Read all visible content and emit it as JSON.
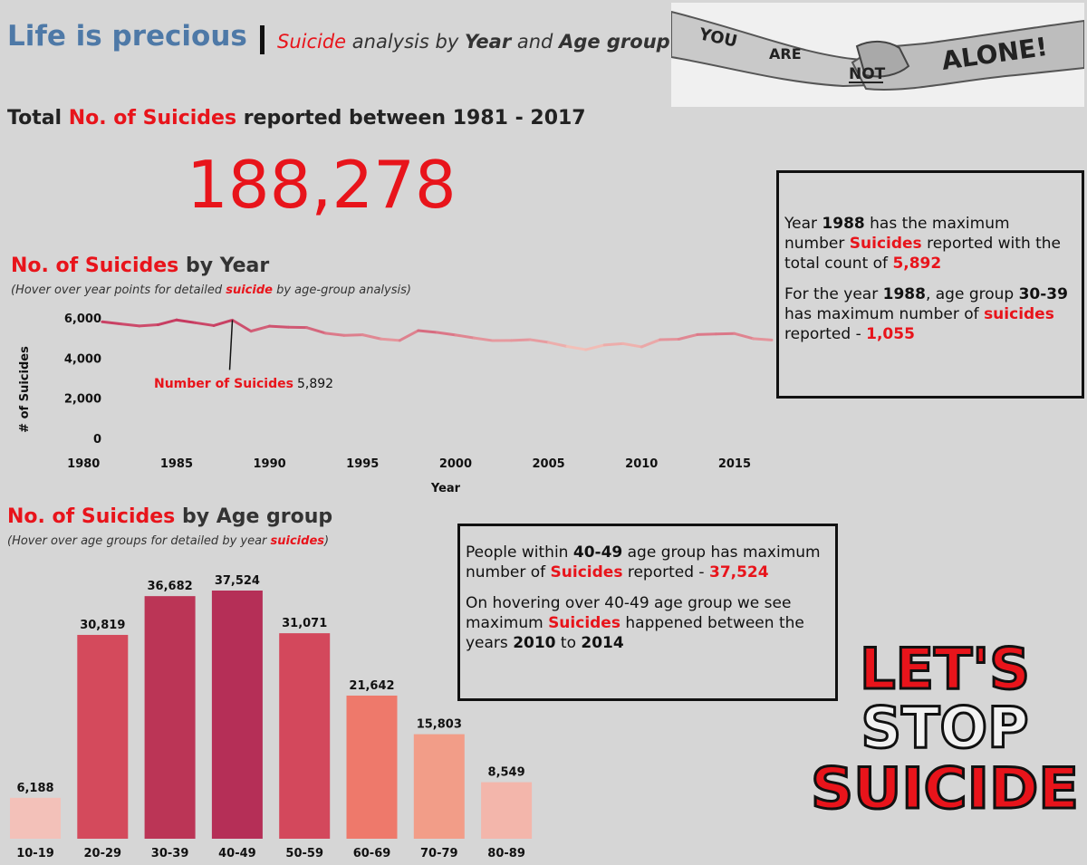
{
  "header": {
    "title": "Life is precious",
    "subtitle_parts": [
      {
        "text": "Suicide",
        "style": "red"
      },
      {
        "text": " analysis by ",
        "style": "plain"
      },
      {
        "text": "Year",
        "style": "bold"
      },
      {
        "text": " and ",
        "style": "plain"
      },
      {
        "text": "Age group",
        "style": "bold"
      }
    ]
  },
  "hero_image": {
    "icon": "handshake-photo-icon",
    "words": [
      "YOU",
      "ARE",
      "NOT",
      "ALONE!"
    ]
  },
  "total": {
    "heading_parts": [
      {
        "text": "Total ",
        "style": "plain"
      },
      {
        "text": "No. of Suicides",
        "style": "red"
      },
      {
        "text": " reported between 1981 - 2017",
        "style": "plain"
      }
    ],
    "value": "188,278"
  },
  "year_section": {
    "title_parts": [
      {
        "text": "No. of Suicides",
        "style": "red"
      },
      {
        "text": " by Year",
        "style": "plain"
      }
    ],
    "hint_parts": [
      {
        "text": "(Hover over year points for detailed ",
        "style": "plain"
      },
      {
        "text": "suicide",
        "style": "red"
      },
      {
        "text": " by age-group analysis)",
        "style": "plain"
      }
    ]
  },
  "age_section": {
    "title_parts": [
      {
        "text": "No. of Suicides",
        "style": "red"
      },
      {
        "text": " by Age group",
        "style": "plain"
      }
    ],
    "hint_parts": [
      {
        "text": "(Hover over age groups for detailed by year ",
        "style": "plain"
      },
      {
        "text": "suicides",
        "style": "red"
      },
      {
        "text": ")",
        "style": "plain"
      }
    ]
  },
  "year_note": {
    "paragraphs": [
      [
        {
          "text": "Year ",
          "style": "plain"
        },
        {
          "text": "1988",
          "style": "bold"
        },
        {
          "text": " has the maximum number ",
          "style": "plain"
        },
        {
          "text": "Suicides",
          "style": "red"
        },
        {
          "text": " reported with the total count of ",
          "style": "plain"
        },
        {
          "text": "5,892",
          "style": "red"
        }
      ],
      [
        {
          "text": "For the year ",
          "style": "plain"
        },
        {
          "text": "1988",
          "style": "bold"
        },
        {
          "text": ", age group ",
          "style": "plain"
        },
        {
          "text": "30-39",
          "style": "bold"
        },
        {
          "text": " has maximum number of ",
          "style": "plain"
        },
        {
          "text": "suicides",
          "style": "red"
        },
        {
          "text": " reported - ",
          "style": "plain"
        },
        {
          "text": "1,055",
          "style": "red"
        }
      ]
    ]
  },
  "age_note": {
    "paragraphs": [
      [
        {
          "text": "People within ",
          "style": "plain"
        },
        {
          "text": "40-49",
          "style": "bold"
        },
        {
          "text": " age group has maximum number of ",
          "style": "plain"
        },
        {
          "text": "Suicides",
          "style": "red"
        },
        {
          "text": " reported - ",
          "style": "plain"
        },
        {
          "text": "37,524",
          "style": "red"
        }
      ],
      [
        {
          "text": "On hovering over 40-49 age group we see maximum ",
          "style": "plain"
        },
        {
          "text": "Suicides",
          "style": "red"
        },
        {
          "text": " happened between the years ",
          "style": "plain"
        },
        {
          "text": "2010",
          "style": "bold"
        },
        {
          "text": " to ",
          "style": "plain"
        },
        {
          "text": "2014",
          "style": "bold"
        }
      ]
    ]
  },
  "stop_logo": {
    "icon": "lets-stop-suicide-logo-icon",
    "lines": [
      "LET'S",
      "STOP",
      "SUICIDE"
    ]
  },
  "colors": {
    "accent_red": "#e8141b",
    "title_blue": "#4e79a7",
    "background": "#d6d6d6"
  },
  "chart_data": [
    {
      "type": "line",
      "xlabel": "Year",
      "ylabel": "# of Suicides",
      "xlim": [
        1979.5,
        2017
      ],
      "ylim": [
        0,
        6000
      ],
      "x_ticks": [
        1980,
        1985,
        1990,
        1995,
        2000,
        2005,
        2010,
        2015
      ],
      "y_ticks": [
        0,
        2000,
        4000,
        6000
      ],
      "y_tick_labels": [
        "0",
        "2,000",
        "4,000",
        "6,000"
      ],
      "grid": false,
      "x": [
        1981,
        1982,
        1983,
        1984,
        1985,
        1986,
        1987,
        1988,
        1989,
        1990,
        1991,
        1992,
        1993,
        1994,
        1995,
        1996,
        1997,
        1998,
        1999,
        2000,
        2001,
        2002,
        2003,
        2004,
        2005,
        2006,
        2007,
        2008,
        2009,
        2010,
        2011,
        2012,
        2013,
        2014,
        2015,
        2016,
        2017
      ],
      "values": [
        5810,
        5700,
        5600,
        5660,
        5900,
        5760,
        5620,
        5892,
        5340,
        5590,
        5540,
        5520,
        5240,
        5130,
        5160,
        4950,
        4880,
        5370,
        5280,
        5150,
        5000,
        4870,
        4880,
        4920,
        4780,
        4580,
        4420,
        4650,
        4720,
        4560,
        4920,
        4940,
        5170,
        5200,
        5220,
        4970,
        4900
      ],
      "color_scale": "value (light pink at min to dark red at max)",
      "annotation": {
        "x": 1988,
        "label": "Number of Suicides",
        "value": "5,892"
      }
    },
    {
      "type": "bar",
      "categories": [
        "10-19",
        "20-29",
        "30-39",
        "40-49",
        "50-59",
        "60-69",
        "70-79",
        "80-89"
      ],
      "values": [
        6188,
        30819,
        36682,
        37524,
        31071,
        21642,
        15803,
        8549
      ],
      "value_labels": [
        "6,188",
        "30,819",
        "36,682",
        "37,524",
        "31,071",
        "21,642",
        "15,803",
        "8,549"
      ],
      "colors": [
        "#f3c1b9",
        "#d44a5c",
        "#bb3556",
        "#b52f57",
        "#d3485c",
        "#ee796b",
        "#f29d88",
        "#f3b6ab"
      ],
      "ylim": [
        0,
        37524
      ]
    }
  ]
}
